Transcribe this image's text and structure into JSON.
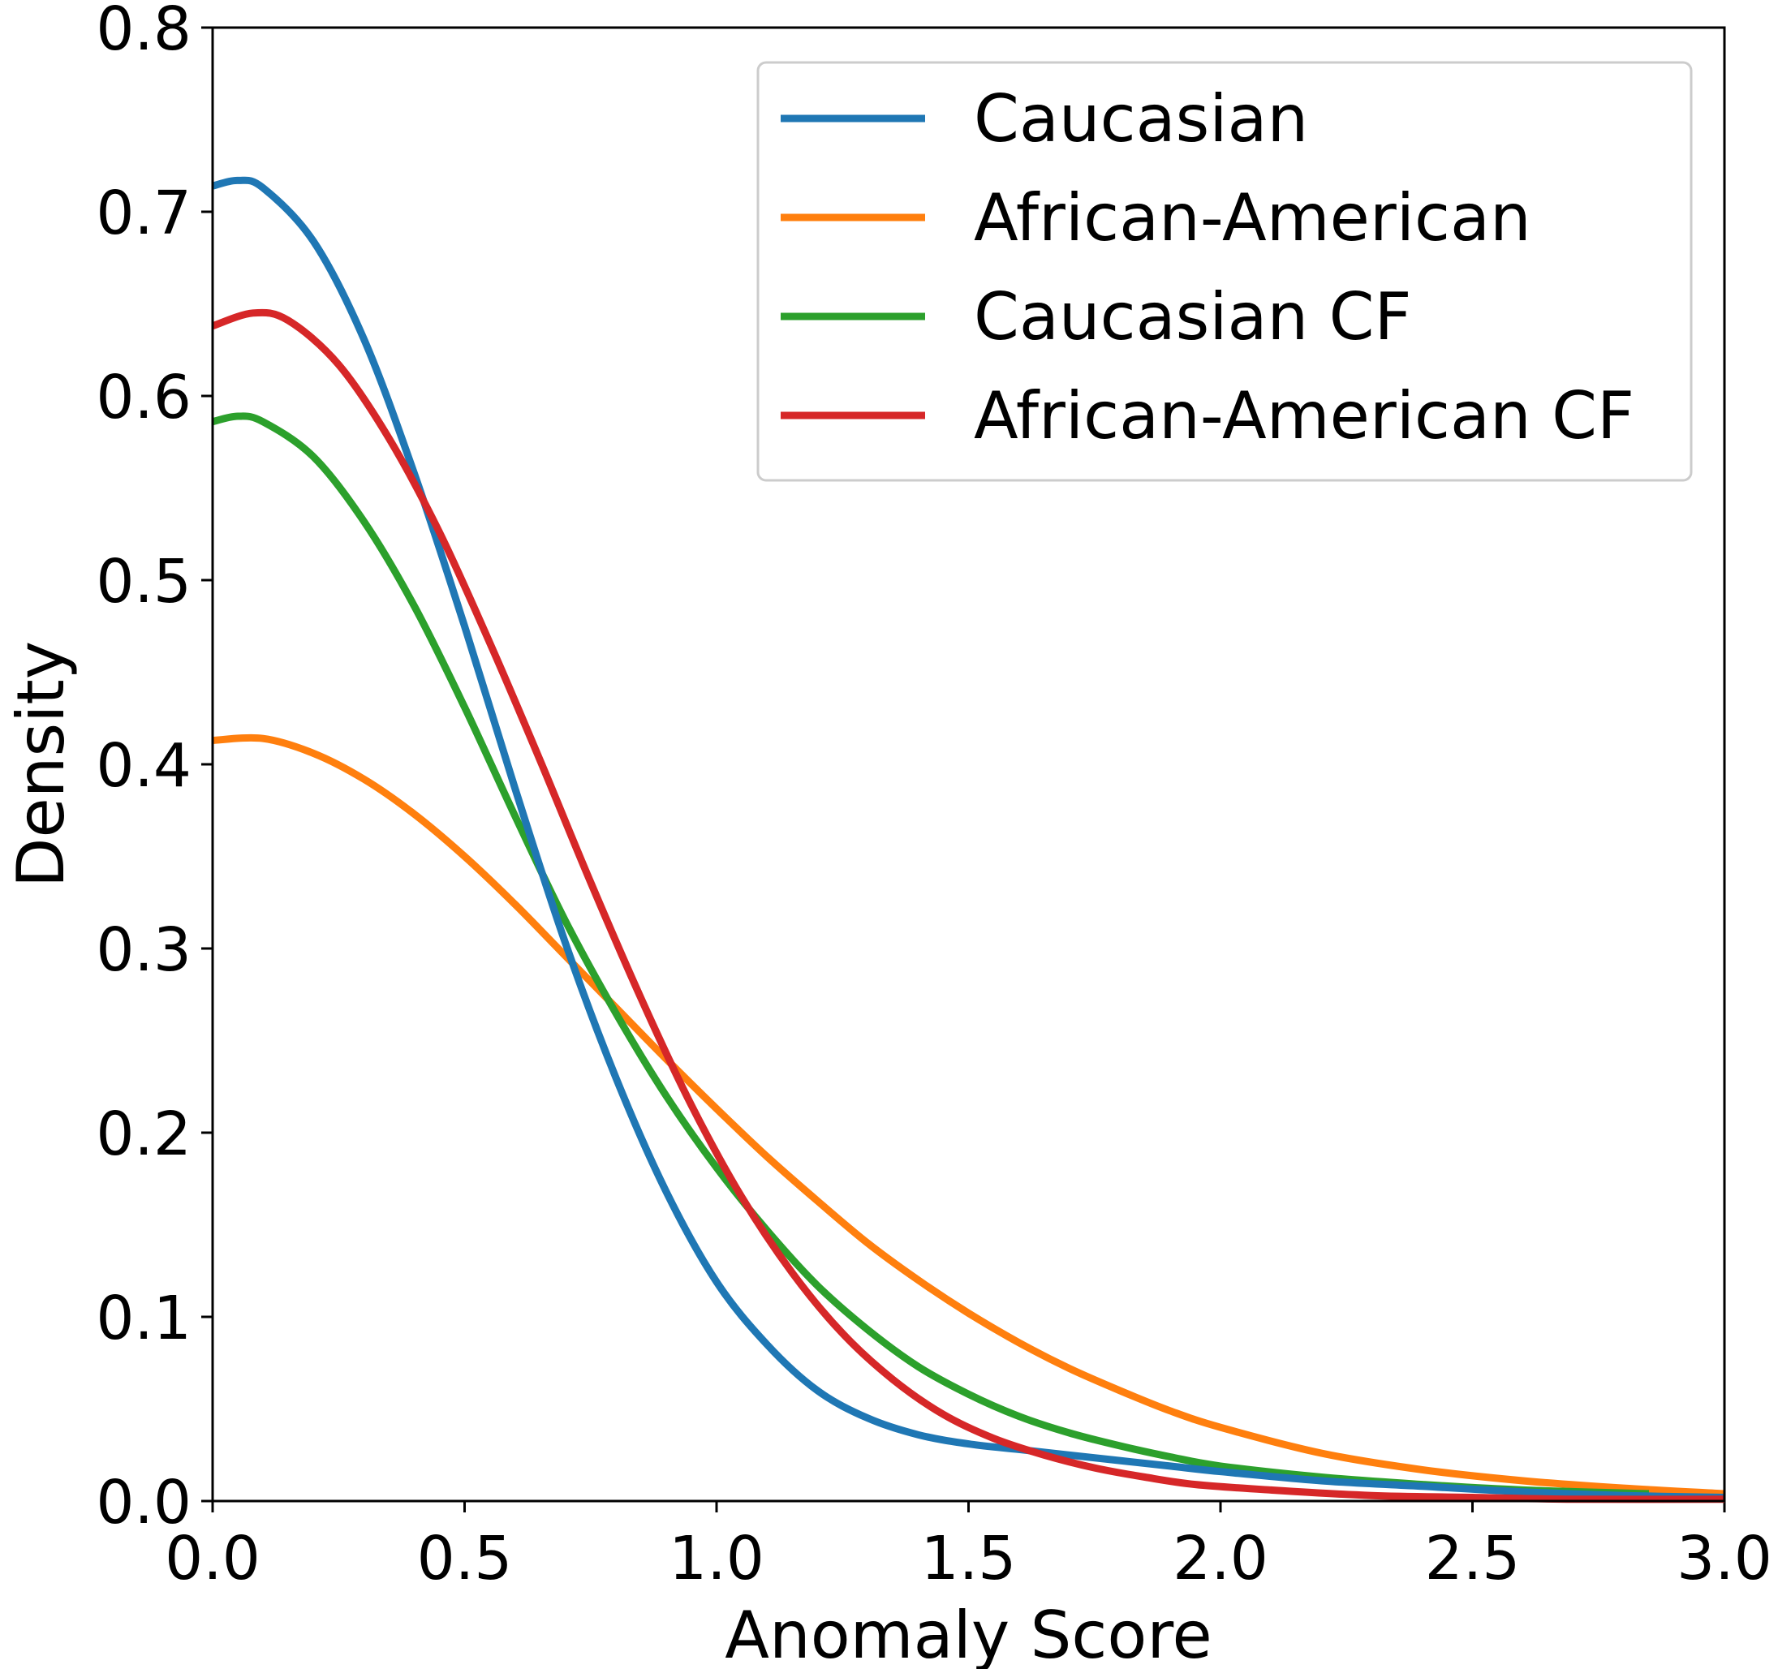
{
  "chart_data": {
    "type": "line",
    "title": "",
    "xlabel": "Anomaly Score",
    "ylabel": "Density",
    "xlim": [
      0.0,
      3.0
    ],
    "ylim": [
      0.0,
      0.8
    ],
    "xticks": [
      "0.0",
      "0.5",
      "1.0",
      "1.5",
      "2.0",
      "2.5",
      "3.0"
    ],
    "yticks": [
      "0.0",
      "0.1",
      "0.2",
      "0.3",
      "0.4",
      "0.5",
      "0.6",
      "0.7",
      "0.8"
    ],
    "grid": false,
    "legend_position": "top-right",
    "series": [
      {
        "name": "Caucasian",
        "color": "#1f77b4",
        "x": [
          0.0,
          0.05,
          0.1,
          0.2,
          0.3,
          0.4,
          0.5,
          0.6,
          0.7,
          0.8,
          0.9,
          1.0,
          1.1,
          1.2,
          1.3,
          1.4,
          1.5,
          1.6,
          1.7,
          1.8,
          1.9,
          2.0,
          2.2,
          2.4,
          2.6,
          2.8,
          3.0
        ],
        "y": [
          0.714,
          0.717,
          0.713,
          0.684,
          0.631,
          0.558,
          0.475,
          0.387,
          0.303,
          0.23,
          0.168,
          0.119,
          0.085,
          0.06,
          0.045,
          0.036,
          0.031,
          0.028,
          0.025,
          0.022,
          0.019,
          0.016,
          0.011,
          0.008,
          0.005,
          0.003,
          0.002
        ]
      },
      {
        "name": "African-American",
        "color": "#ff7f0e",
        "x": [
          0.0,
          0.1,
          0.2,
          0.3,
          0.4,
          0.5,
          0.6,
          0.7,
          0.8,
          0.9,
          1.0,
          1.1,
          1.2,
          1.3,
          1.4,
          1.5,
          1.6,
          1.7,
          1.8,
          1.9,
          2.0,
          2.2,
          2.4,
          2.6,
          2.8,
          3.0
        ],
        "y": [
          0.413,
          0.414,
          0.406,
          0.392,
          0.373,
          0.35,
          0.324,
          0.296,
          0.268,
          0.24,
          0.213,
          0.187,
          0.163,
          0.14,
          0.12,
          0.102,
          0.086,
          0.072,
          0.06,
          0.049,
          0.04,
          0.026,
          0.017,
          0.011,
          0.007,
          0.004
        ]
      },
      {
        "name": "Caucasian CF",
        "color": "#2ca02c",
        "x": [
          0.0,
          0.05,
          0.1,
          0.2,
          0.3,
          0.4,
          0.5,
          0.6,
          0.7,
          0.8,
          0.9,
          1.0,
          1.1,
          1.2,
          1.3,
          1.4,
          1.5,
          1.6,
          1.7,
          1.8,
          1.9,
          2.0,
          2.2,
          2.4,
          2.6,
          2.85
        ],
        "y": [
          0.586,
          0.589,
          0.586,
          0.567,
          0.532,
          0.486,
          0.431,
          0.372,
          0.315,
          0.265,
          0.22,
          0.181,
          0.147,
          0.117,
          0.093,
          0.073,
          0.058,
          0.046,
          0.037,
          0.03,
          0.024,
          0.019,
          0.013,
          0.009,
          0.006,
          0.004
        ]
      },
      {
        "name": "African-American CF",
        "color": "#d62728",
        "x": [
          0.0,
          0.08,
          0.15,
          0.25,
          0.35,
          0.45,
          0.55,
          0.65,
          0.75,
          0.85,
          0.95,
          1.05,
          1.15,
          1.25,
          1.35,
          1.45,
          1.55,
          1.65,
          1.75,
          1.85,
          1.95,
          2.1,
          2.3,
          2.5,
          2.7,
          3.0
        ],
        "y": [
          0.638,
          0.645,
          0.641,
          0.617,
          0.577,
          0.526,
          0.466,
          0.402,
          0.336,
          0.273,
          0.215,
          0.165,
          0.124,
          0.091,
          0.066,
          0.047,
          0.034,
          0.025,
          0.018,
          0.013,
          0.009,
          0.006,
          0.003,
          0.002,
          0.001,
          0.001
        ]
      }
    ]
  }
}
